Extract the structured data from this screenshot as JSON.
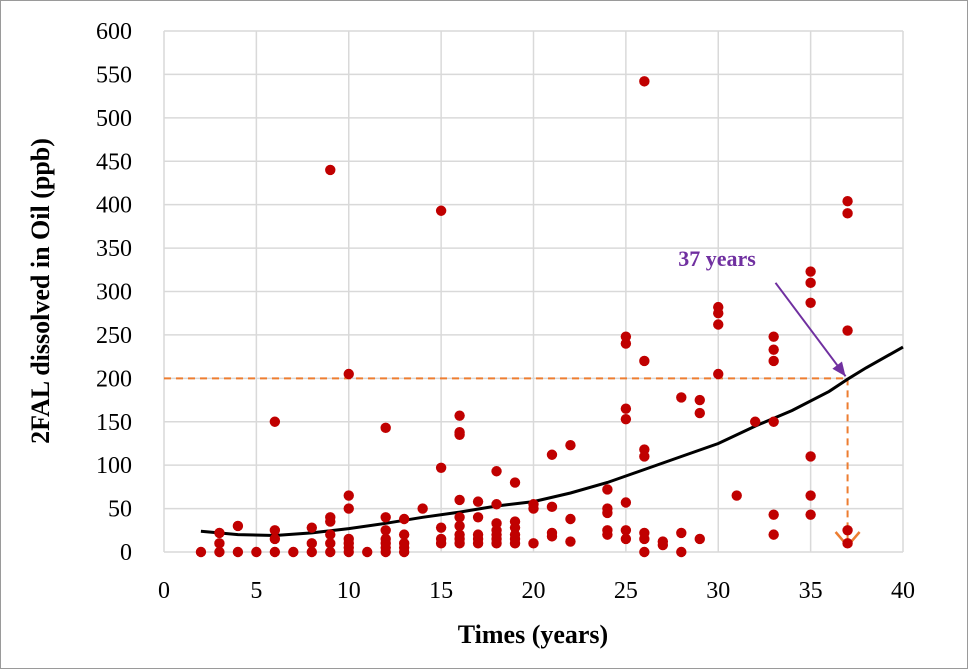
{
  "chart_data": {
    "type": "scatter",
    "xlabel": "Times (years)",
    "ylabel": "2FAL dissolved in Oil (ppb)",
    "xlim": [
      0,
      40
    ],
    "ylim": [
      0,
      600
    ],
    "x_ticks": [
      "0",
      "5",
      "10",
      "15",
      "20",
      "25",
      "30",
      "35",
      "40"
    ],
    "y_ticks": [
      "0",
      "50",
      "100",
      "150",
      "200",
      "250",
      "300",
      "350",
      "400",
      "450",
      "500",
      "550",
      "600"
    ],
    "grid": true,
    "series": [
      {
        "type": "scatter",
        "color": "#c00000",
        "points": [
          [
            2,
            0
          ],
          [
            3,
            0
          ],
          [
            3,
            10
          ],
          [
            3,
            22
          ],
          [
            4,
            0
          ],
          [
            4,
            30
          ],
          [
            5,
            0
          ],
          [
            6,
            0
          ],
          [
            6,
            15
          ],
          [
            6,
            25
          ],
          [
            6,
            150
          ],
          [
            7,
            0
          ],
          [
            8,
            0
          ],
          [
            8,
            10
          ],
          [
            8,
            28
          ],
          [
            9,
            0
          ],
          [
            9,
            10
          ],
          [
            9,
            20
          ],
          [
            9,
            35
          ],
          [
            9,
            40
          ],
          [
            9,
            440
          ],
          [
            10,
            0
          ],
          [
            10,
            5
          ],
          [
            10,
            10
          ],
          [
            10,
            15
          ],
          [
            10,
            50
          ],
          [
            10,
            65
          ],
          [
            10,
            205
          ],
          [
            11,
            0
          ],
          [
            12,
            0
          ],
          [
            12,
            5
          ],
          [
            12,
            10
          ],
          [
            12,
            15
          ],
          [
            12,
            25
          ],
          [
            12,
            40
          ],
          [
            12,
            143
          ],
          [
            13,
            0
          ],
          [
            13,
            5
          ],
          [
            13,
            10
          ],
          [
            13,
            20
          ],
          [
            13,
            38
          ],
          [
            14,
            50
          ],
          [
            15,
            10
          ],
          [
            15,
            15
          ],
          [
            15,
            28
          ],
          [
            15,
            97
          ],
          [
            15,
            393
          ],
          [
            16,
            10
          ],
          [
            16,
            15
          ],
          [
            16,
            20
          ],
          [
            16,
            30
          ],
          [
            16,
            40
          ],
          [
            16,
            60
          ],
          [
            16,
            135
          ],
          [
            16,
            138
          ],
          [
            16,
            157
          ],
          [
            17,
            10
          ],
          [
            17,
            15
          ],
          [
            17,
            20
          ],
          [
            17,
            40
          ],
          [
            17,
            58
          ],
          [
            18,
            10
          ],
          [
            18,
            15
          ],
          [
            18,
            20
          ],
          [
            18,
            25
          ],
          [
            18,
            33
          ],
          [
            18,
            55
          ],
          [
            18,
            93
          ],
          [
            19,
            10
          ],
          [
            19,
            15
          ],
          [
            19,
            20
          ],
          [
            19,
            28
          ],
          [
            19,
            35
          ],
          [
            19,
            80
          ],
          [
            20,
            10
          ],
          [
            20,
            50
          ],
          [
            20,
            55
          ],
          [
            21,
            18
          ],
          [
            21,
            22
          ],
          [
            21,
            52
          ],
          [
            21,
            112
          ],
          [
            22,
            12
          ],
          [
            22,
            38
          ],
          [
            22,
            123
          ],
          [
            24,
            20
          ],
          [
            24,
            25
          ],
          [
            24,
            45
          ],
          [
            24,
            50
          ],
          [
            24,
            72
          ],
          [
            25,
            15
          ],
          [
            25,
            25
          ],
          [
            25,
            57
          ],
          [
            25,
            153
          ],
          [
            25,
            165
          ],
          [
            25,
            240
          ],
          [
            25,
            248
          ],
          [
            26,
            0
          ],
          [
            26,
            15
          ],
          [
            26,
            22
          ],
          [
            26,
            110
          ],
          [
            26,
            118
          ],
          [
            26,
            220
          ],
          [
            26,
            542
          ],
          [
            27,
            8
          ],
          [
            27,
            12
          ],
          [
            28,
            0
          ],
          [
            28,
            22
          ],
          [
            28,
            178
          ],
          [
            29,
            15
          ],
          [
            29,
            160
          ],
          [
            29,
            175
          ],
          [
            30,
            205
          ],
          [
            30,
            262
          ],
          [
            30,
            275
          ],
          [
            30,
            282
          ],
          [
            31,
            65
          ],
          [
            32,
            150
          ],
          [
            33,
            20
          ],
          [
            33,
            43
          ],
          [
            33,
            150
          ],
          [
            33,
            220
          ],
          [
            33,
            233
          ],
          [
            33,
            248
          ],
          [
            35,
            43
          ],
          [
            35,
            65
          ],
          [
            35,
            110
          ],
          [
            35,
            287
          ],
          [
            35,
            310
          ],
          [
            35,
            323
          ],
          [
            37,
            10
          ],
          [
            37,
            25
          ],
          [
            37,
            255
          ],
          [
            37,
            390
          ],
          [
            37,
            404
          ]
        ]
      },
      {
        "type": "line",
        "color": "#000000",
        "curve": [
          [
            2,
            24
          ],
          [
            4,
            20
          ],
          [
            6,
            19
          ],
          [
            8,
            22
          ],
          [
            10,
            27
          ],
          [
            12,
            33
          ],
          [
            14,
            40
          ],
          [
            16,
            46
          ],
          [
            18,
            53
          ],
          [
            20,
            58
          ],
          [
            22,
            68
          ],
          [
            24,
            80
          ],
          [
            26,
            95
          ],
          [
            28,
            110
          ],
          [
            30,
            125
          ],
          [
            32,
            145
          ],
          [
            34,
            163
          ],
          [
            36,
            185
          ],
          [
            37,
            199
          ],
          [
            38,
            212
          ],
          [
            40,
            236
          ]
        ]
      }
    ],
    "reference": {
      "threshold_y": 200,
      "threshold_x": 37,
      "line_color": "#ed7d31",
      "label": "37 years",
      "label_color": "#7030a0",
      "arrow_from": [
        33.1,
        310
      ]
    }
  }
}
